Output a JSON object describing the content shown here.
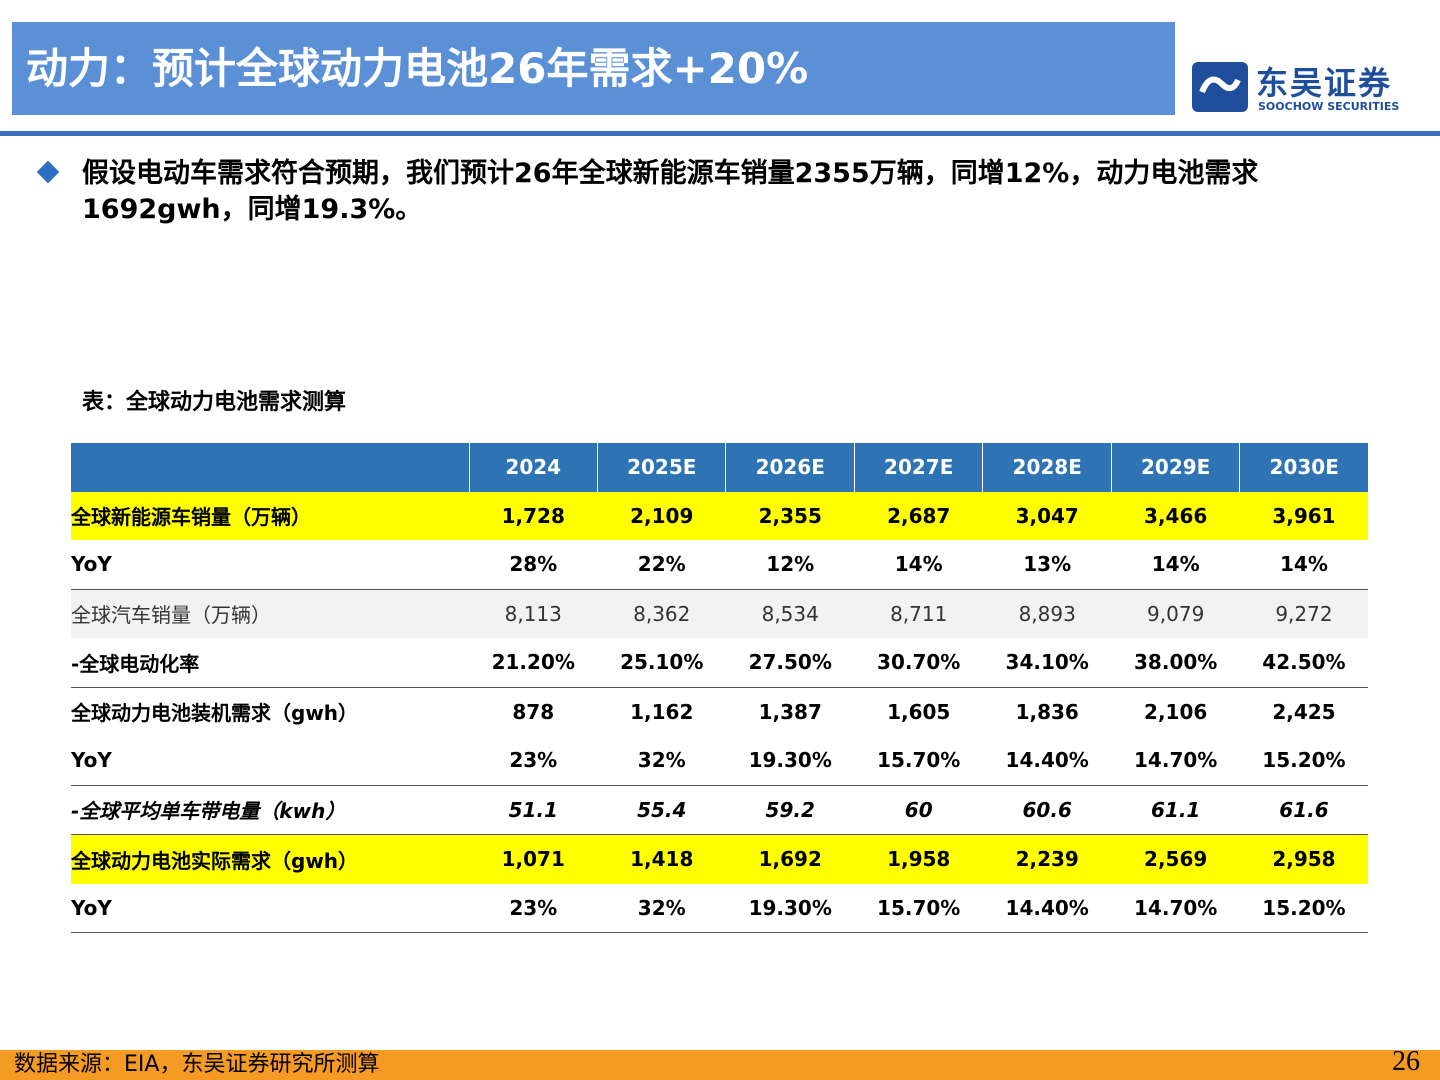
{
  "header": {
    "title": "动力：预计全球动力电池26年需求+20%",
    "logo_cn": "东吴证券",
    "logo_en": "SOOCHOW SECURITIES"
  },
  "bullet": "假设电动车需求符合预期，我们预计26年全球新能源车销量2355万辆，同增12%，动力电池需求1692gwh，同增19.3%。",
  "table": {
    "caption": "表：全球动力电池需求测算",
    "columns": [
      "2024",
      "2025E",
      "2026E",
      "2027E",
      "2028E",
      "2029E",
      "2030E"
    ],
    "rows": [
      [
        "全球新能源车销量（万辆）",
        "1,728",
        "2,109",
        "2,355",
        "2,687",
        "3,047",
        "3,466",
        "3,961"
      ],
      [
        "YoY",
        "28%",
        "22%",
        "12%",
        "14%",
        "13%",
        "14%",
        "14%"
      ],
      [
        "全球汽车销量（万辆）",
        "8,113",
        "8,362",
        "8,534",
        "8,711",
        "8,893",
        "9,079",
        "9,272"
      ],
      [
        "-全球电动化率",
        "21.20%",
        "25.10%",
        "27.50%",
        "30.70%",
        "34.10%",
        "38.00%",
        "42.50%"
      ],
      [
        "全球动力电池装机需求（gwh）",
        "878",
        "1,162",
        "1,387",
        "1,605",
        "1,836",
        "2,106",
        "2,425"
      ],
      [
        "YoY",
        "23%",
        "32%",
        "19.30%",
        "15.70%",
        "14.40%",
        "14.70%",
        "15.20%"
      ],
      [
        "-全球平均单车带电量（kwh）",
        "51.1",
        "55.4",
        "59.2",
        "60",
        "60.6",
        "61.1",
        "61.6"
      ],
      [
        "全球动力电池实际需求（gwh）",
        "1,071",
        "1,418",
        "1,692",
        "1,958",
        "2,239",
        "2,569",
        "2,958"
      ],
      [
        "YoY",
        "23%",
        "32%",
        "19.30%",
        "15.70%",
        "14.40%",
        "14.70%",
        "15.20%"
      ]
    ]
  },
  "footer": {
    "source": "数据来源：EIA，东吴证券研究所测算",
    "page": "26"
  }
}
